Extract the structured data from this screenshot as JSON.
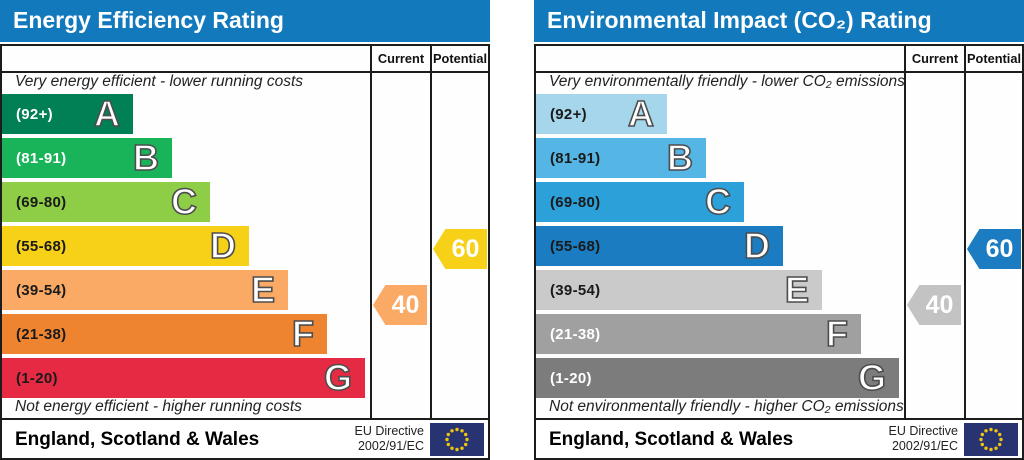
{
  "eu_flag": {
    "background": "#283372",
    "star_color": "#f0c50d"
  },
  "charts": [
    {
      "id": "energy-efficiency",
      "title": "Energy Efficiency Rating",
      "header_color": "#1379bd",
      "columns": {
        "current": "Current",
        "potential": "Potential"
      },
      "top_note": "Very energy efficient - lower running costs",
      "bottom_note": "Not energy efficient - higher running costs",
      "bands": [
        {
          "letter": "A",
          "range_label": "(92+)",
          "min": 92,
          "max": 100,
          "color": "#008054",
          "label_color": "#ffffff"
        },
        {
          "letter": "B",
          "range_label": "(81-91)",
          "min": 81,
          "max": 91,
          "color": "#19b459",
          "label_color": "#ffffff"
        },
        {
          "letter": "C",
          "range_label": "(69-80)",
          "min": 69,
          "max": 80,
          "color": "#8dce46",
          "label_color": "#1a1a1a"
        },
        {
          "letter": "D",
          "range_label": "(55-68)",
          "min": 55,
          "max": 68,
          "color": "#f7d117",
          "label_color": "#1a1a1a"
        },
        {
          "letter": "E",
          "range_label": "(39-54)",
          "min": 39,
          "max": 54,
          "color": "#fbaa65",
          "label_color": "#1a1a1a"
        },
        {
          "letter": "F",
          "range_label": "(21-38)",
          "min": 21,
          "max": 38,
          "color": "#ee8430",
          "label_color": "#1a1a1a"
        },
        {
          "letter": "G",
          "range_label": "(1-20)",
          "min": 1,
          "max": 20,
          "color": "#e72a43",
          "label_color": "#1a1a1a"
        }
      ],
      "arrows": {
        "current": {
          "value": 40,
          "color": "#fbaa65"
        },
        "potential": {
          "value": 60,
          "color": "#f7d117"
        }
      },
      "footer": {
        "region": "England, Scotland & Wales",
        "directive_line1": "EU Directive",
        "directive_line2": "2002/91/EC"
      }
    },
    {
      "id": "environmental-impact",
      "title": "Environmental Impact (CO₂) Rating",
      "header_color": "#1379bd",
      "columns": {
        "current": "Current",
        "potential": "Potential"
      },
      "top_note": "Very environmentally friendly - lower CO₂ emissions",
      "bottom_note": "Not environmentally friendly - higher CO₂ emissions",
      "bands": [
        {
          "letter": "A",
          "range_label": "(92+)",
          "min": 92,
          "max": 100,
          "color": "#a5d6eb",
          "label_color": "#1a1a1a"
        },
        {
          "letter": "B",
          "range_label": "(81-91)",
          "min": 81,
          "max": 91,
          "color": "#55b5e5",
          "label_color": "#1a1a1a"
        },
        {
          "letter": "C",
          "range_label": "(69-80)",
          "min": 69,
          "max": 80,
          "color": "#2ba0d9",
          "label_color": "#1a1a1a"
        },
        {
          "letter": "D",
          "range_label": "(55-68)",
          "min": 55,
          "max": 68,
          "color": "#1b7cc1",
          "label_color": "#1a1a1a"
        },
        {
          "letter": "E",
          "range_label": "(39-54)",
          "min": 39,
          "max": 54,
          "color": "#cacaca",
          "label_color": "#1a1a1a"
        },
        {
          "letter": "F",
          "range_label": "(21-38)",
          "min": 21,
          "max": 38,
          "color": "#a0a0a1",
          "label_color": "#ffffff"
        },
        {
          "letter": "G",
          "range_label": "(1-20)",
          "min": 1,
          "max": 20,
          "color": "#7c7c7c",
          "label_color": "#ffffff"
        }
      ],
      "arrows": {
        "current": {
          "value": 40,
          "color": "#c3c3c3"
        },
        "potential": {
          "value": 60,
          "color": "#1b7cc1"
        }
      },
      "footer": {
        "region": "England, Scotland & Wales",
        "directive_line1": "EU Directive",
        "directive_line2": "2002/91/EC"
      }
    }
  ],
  "chart_data": [
    {
      "type": "bar",
      "title": "Energy Efficiency Rating",
      "categories": [
        "A (92+)",
        "B (81-91)",
        "C (69-80)",
        "D (55-68)",
        "E (39-54)",
        "F (21-38)",
        "G (1-20)"
      ],
      "series": [
        {
          "name": "Current",
          "values": [
            40
          ],
          "band": "E"
        },
        {
          "name": "Potential",
          "values": [
            60
          ],
          "band": "D"
        }
      ],
      "xlabel": "",
      "ylabel": "",
      "ylim": [
        1,
        100
      ],
      "annotations": [
        "Very energy efficient - lower running costs",
        "Not energy efficient - higher running costs",
        "England, Scotland & Wales",
        "EU Directive 2002/91/EC"
      ]
    },
    {
      "type": "bar",
      "title": "Environmental Impact (CO₂) Rating",
      "categories": [
        "A (92+)",
        "B (81-91)",
        "C (69-80)",
        "D (55-68)",
        "E (39-54)",
        "F (21-38)",
        "G (1-20)"
      ],
      "series": [
        {
          "name": "Current",
          "values": [
            40
          ],
          "band": "E"
        },
        {
          "name": "Potential",
          "values": [
            60
          ],
          "band": "D"
        }
      ],
      "xlabel": "",
      "ylabel": "",
      "ylim": [
        1,
        100
      ],
      "annotations": [
        "Very environmentally friendly - lower CO₂ emissions",
        "Not environmentally friendly - higher CO₂ emissions",
        "England, Scotland & Wales",
        "EU Directive 2002/91/EC"
      ]
    }
  ]
}
